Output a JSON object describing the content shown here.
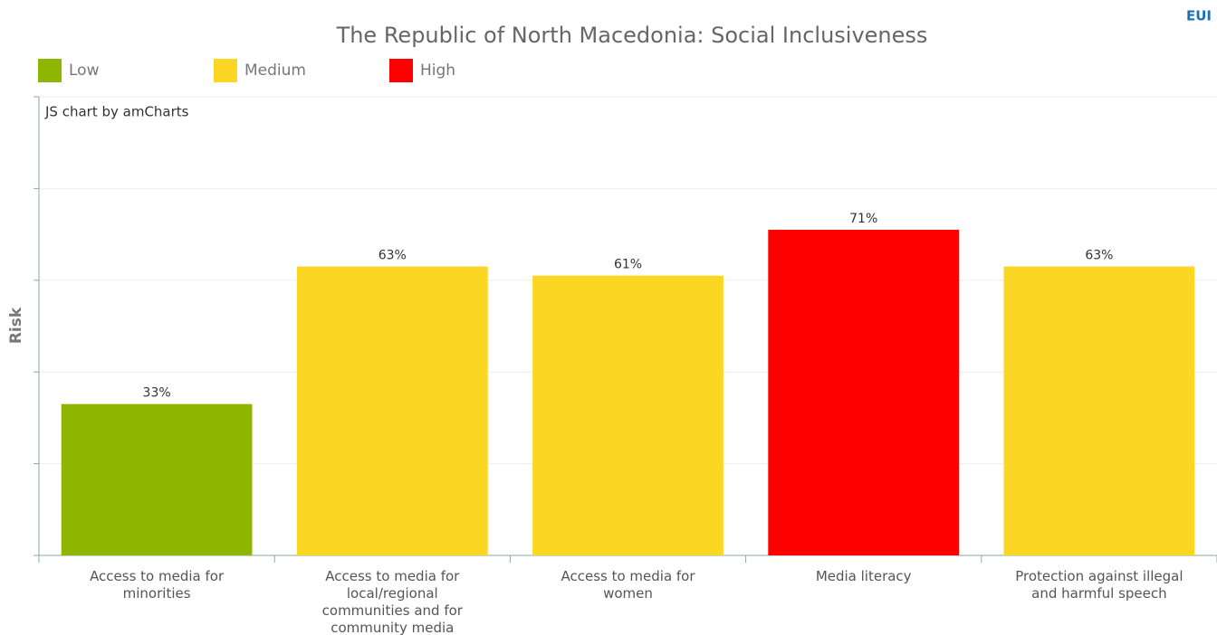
{
  "chart_data": {
    "type": "bar",
    "title": "The Republic of North Macedonia: Social Inclusiveness",
    "logo": "EUI",
    "credit": "JS chart by amCharts",
    "y_label": "Risk",
    "legend": [
      {
        "name": "Low",
        "color": "#8db600"
      },
      {
        "name": "Medium",
        "color": "#fbd723"
      },
      {
        "name": "High",
        "color": "#ff0000"
      }
    ],
    "categories": [
      "Access to media for minorities",
      "Access to media for local/regional communities and for community media",
      "Access to media for women",
      "Media literacy",
      "Protection against illegal and harmful speech"
    ],
    "values": [
      33,
      63,
      61,
      71,
      63
    ],
    "value_labels": [
      "33%",
      "63%",
      "61%",
      "71%",
      "63%"
    ],
    "colors": [
      "#8db600",
      "#fbd723",
      "#fbd723",
      "#ff0000",
      "#fbd723"
    ],
    "ylim": [
      0,
      100
    ],
    "yticks": [
      0,
      20,
      40,
      60,
      80,
      100
    ],
    "grid": true
  }
}
